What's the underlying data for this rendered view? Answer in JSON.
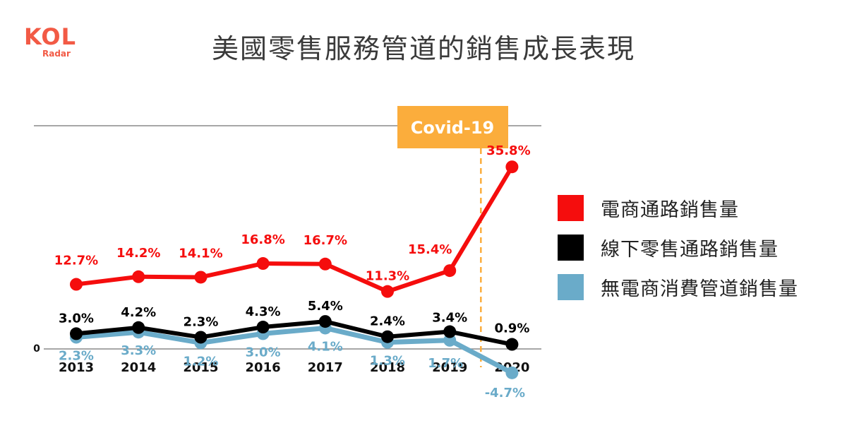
{
  "logo": {
    "main": "KOL",
    "sub": "Radar"
  },
  "title": "美國零售服務管道的銷售成長表現",
  "colors": {
    "red": "#f50d0d",
    "black": "#000000",
    "blue": "#6aabc9",
    "orange": "#fbad3c"
  },
  "chart_data": {
    "type": "line",
    "categories": [
      "2013",
      "2014",
      "2015",
      "2016",
      "2017",
      "2018",
      "2019",
      "2020"
    ],
    "zero_label": "0",
    "grid": false,
    "legend_position": "right",
    "annotation": {
      "label": "Covid-19",
      "at": "between 2019 and 2020"
    },
    "series": [
      {
        "name": "電商通路銷售量",
        "color": "#f50d0d",
        "values": [
          12.7,
          14.2,
          14.1,
          16.8,
          16.7,
          11.3,
          15.4,
          35.8
        ],
        "labels": [
          "12.7%",
          "14.2%",
          "14.1%",
          "16.8%",
          "16.7%",
          "11.3%",
          "15.4%",
          "35.8%"
        ]
      },
      {
        "name": "線下零售通路銷售量",
        "color": "#000000",
        "values": [
          3.0,
          4.2,
          2.3,
          4.3,
          5.4,
          2.4,
          3.4,
          0.9
        ],
        "labels": [
          "3.0%",
          "4.2%",
          "2.3%",
          "4.3%",
          "5.4%",
          "2.4%",
          "3.4%",
          "0.9%"
        ]
      },
      {
        "name": "無電商消費管道銷售量",
        "color": "#6aabc9",
        "values": [
          2.3,
          3.3,
          1.2,
          3.0,
          4.1,
          1.3,
          1.7,
          -4.7
        ],
        "labels": [
          "2.3%",
          "3.3%",
          "1.2%",
          "3.0%",
          "4.1%",
          "1.3%",
          "1.7%",
          "-4.7%"
        ]
      }
    ]
  }
}
